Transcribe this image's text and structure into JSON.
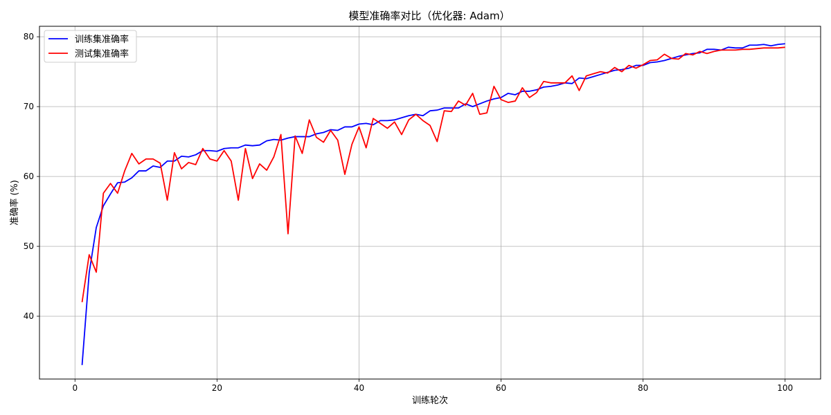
{
  "chart_data": {
    "type": "line",
    "title": "模型准确率对比（优化器: Adam）",
    "xlabel": "训练轮次",
    "ylabel": "准确率 (%)",
    "xlim": [
      -5,
      105
    ],
    "ylim": [
      31,
      81.5
    ],
    "xticks": [
      0,
      20,
      40,
      60,
      80,
      100
    ],
    "yticks": [
      40,
      50,
      60,
      70,
      80
    ],
    "grid": true,
    "legend_position": "top-left",
    "series": [
      {
        "name": "训练集准确率",
        "color": "#0000ff",
        "x": [
          1,
          2,
          3,
          4,
          5,
          6,
          7,
          8,
          9,
          10,
          11,
          12,
          13,
          14,
          15,
          16,
          17,
          18,
          19,
          20,
          21,
          22,
          23,
          24,
          25,
          26,
          27,
          28,
          29,
          30,
          31,
          32,
          33,
          34,
          35,
          36,
          37,
          38,
          39,
          40,
          41,
          42,
          43,
          44,
          45,
          46,
          47,
          48,
          49,
          50,
          51,
          52,
          53,
          54,
          55,
          56,
          57,
          58,
          59,
          60,
          61,
          62,
          63,
          64,
          65,
          66,
          67,
          68,
          69,
          70,
          71,
          72,
          73,
          74,
          75,
          76,
          77,
          78,
          79,
          80,
          81,
          82,
          83,
          84,
          85,
          86,
          87,
          88,
          89,
          90,
          91,
          92,
          93,
          94,
          95,
          96,
          97,
          98,
          99,
          100
        ],
        "values": [
          33.0,
          46.2,
          52.7,
          55.8,
          57.5,
          59.1,
          59.2,
          59.8,
          60.8,
          60.8,
          61.5,
          61.3,
          62.2,
          62.2,
          62.9,
          62.8,
          63.1,
          63.7,
          63.7,
          63.6,
          64.0,
          64.1,
          64.1,
          64.5,
          64.4,
          64.5,
          65.1,
          65.3,
          65.2,
          65.5,
          65.7,
          65.7,
          65.7,
          66.1,
          66.3,
          66.7,
          66.6,
          67.1,
          67.1,
          67.5,
          67.6,
          67.4,
          68.0,
          68.0,
          68.1,
          68.4,
          68.7,
          68.9,
          68.7,
          69.4,
          69.5,
          69.8,
          69.8,
          69.8,
          70.4,
          70.0,
          70.4,
          70.8,
          71.1,
          71.3,
          71.9,
          71.7,
          72.2,
          72.2,
          72.4,
          72.8,
          72.9,
          73.1,
          73.4,
          73.3,
          74.1,
          74.0,
          74.3,
          74.6,
          74.9,
          75.2,
          75.3,
          75.5,
          75.9,
          75.9,
          76.3,
          76.4,
          76.6,
          76.9,
          77.2,
          77.4,
          77.6,
          77.7,
          78.2,
          78.2,
          78.1,
          78.5,
          78.4,
          78.4,
          78.8,
          78.8,
          78.9,
          78.7,
          78.9,
          79.0
        ]
      },
      {
        "name": "测试集准确率",
        "color": "#ff0000",
        "x": [
          1,
          2,
          3,
          4,
          5,
          6,
          7,
          8,
          9,
          10,
          11,
          12,
          13,
          14,
          15,
          16,
          17,
          18,
          19,
          20,
          21,
          22,
          23,
          24,
          25,
          26,
          27,
          28,
          29,
          30,
          31,
          32,
          33,
          34,
          35,
          36,
          37,
          38,
          39,
          40,
          41,
          42,
          43,
          44,
          45,
          46,
          47,
          48,
          49,
          50,
          51,
          52,
          53,
          54,
          55,
          56,
          57,
          58,
          59,
          60,
          61,
          62,
          63,
          64,
          65,
          66,
          67,
          68,
          69,
          70,
          71,
          72,
          73,
          74,
          75,
          76,
          77,
          78,
          79,
          80,
          81,
          82,
          83,
          84,
          85,
          86,
          87,
          88,
          89,
          90,
          91,
          92,
          93,
          94,
          95,
          96,
          97,
          98,
          99,
          100
        ],
        "values": [
          42.0,
          48.8,
          46.3,
          57.6,
          59.0,
          57.6,
          60.8,
          63.3,
          61.8,
          62.5,
          62.5,
          61.9,
          56.6,
          63.4,
          61.1,
          62.0,
          61.7,
          64.0,
          62.5,
          62.2,
          63.7,
          62.2,
          56.6,
          64.0,
          59.7,
          61.8,
          60.9,
          62.8,
          66.0,
          51.8,
          65.8,
          63.3,
          68.1,
          65.6,
          64.9,
          66.6,
          65.2,
          60.3,
          64.6,
          67.1,
          64.1,
          68.3,
          67.6,
          66.9,
          67.8,
          66.0,
          68.1,
          68.9,
          68.0,
          67.3,
          65.0,
          69.4,
          69.3,
          70.8,
          70.2,
          71.9,
          68.9,
          69.1,
          72.9,
          71.0,
          70.6,
          70.8,
          72.7,
          71.3,
          72.0,
          73.6,
          73.4,
          73.4,
          73.4,
          74.4,
          72.3,
          74.4,
          74.7,
          75.0,
          74.8,
          75.6,
          75.0,
          75.9,
          75.5,
          76.0,
          76.6,
          76.7,
          77.5,
          76.9,
          76.8,
          77.6,
          77.4,
          77.9,
          77.6,
          77.9,
          78.1,
          78.1,
          78.1,
          78.2,
          78.2,
          78.3,
          78.4,
          78.4,
          78.4,
          78.5
        ]
      }
    ]
  }
}
